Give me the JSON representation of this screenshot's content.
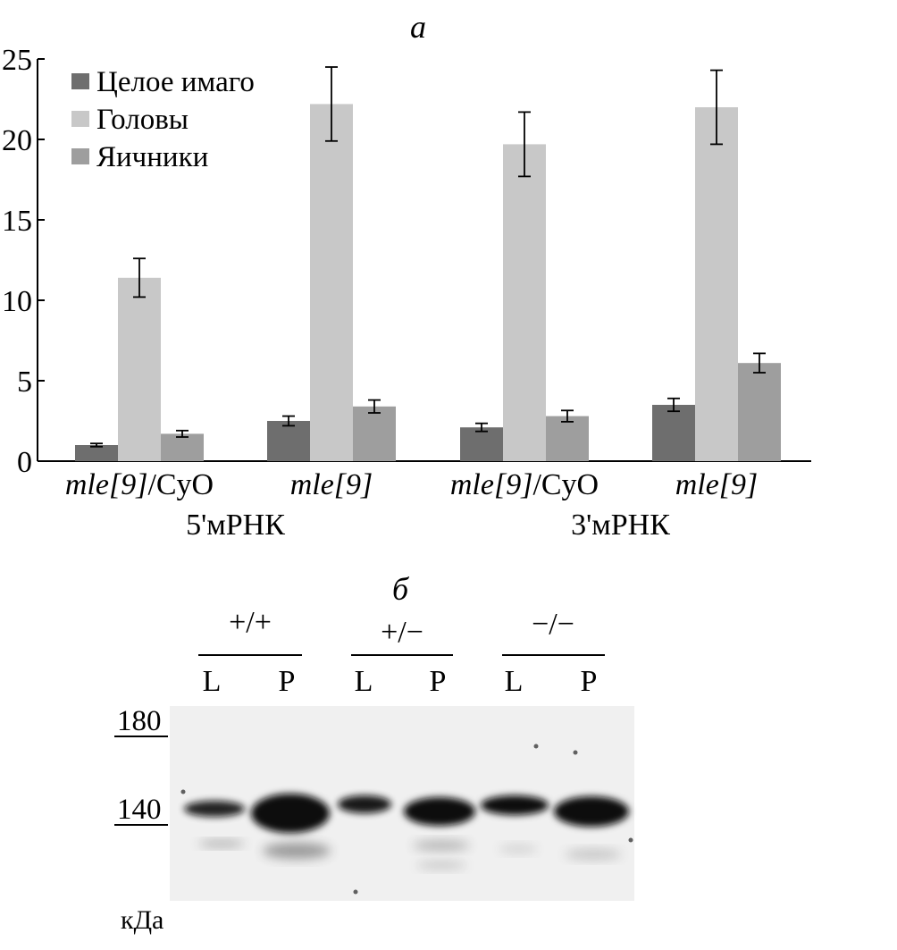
{
  "panel_a": {
    "label": "а",
    "chart_data": {
      "type": "bar",
      "ylim": [
        0,
        25
      ],
      "yticks": [
        0,
        5,
        10,
        15,
        20,
        25
      ],
      "legend_position": "top-left",
      "grid": false,
      "categories": [
        {
          "italic": "mle[9]",
          "roman": "/CyO"
        },
        {
          "italic": "mle[9]",
          "roman": ""
        },
        {
          "italic": "mle[9]",
          "roman": "/CyO"
        },
        {
          "italic": "mle[9]",
          "roman": ""
        }
      ],
      "groups": [
        {
          "label": "5'мРНК",
          "categories": [
            0,
            1
          ]
        },
        {
          "label": "3'мРНК",
          "categories": [
            2,
            3
          ]
        }
      ],
      "series": [
        {
          "name": "Целое имаго",
          "color": "#6e6e6e",
          "values": [
            1.0,
            2.5,
            2.1,
            3.5
          ],
          "errors": [
            0.1,
            0.3,
            0.25,
            0.4
          ]
        },
        {
          "name": "Головы",
          "color": "#c8c8c8",
          "values": [
            11.4,
            22.2,
            19.7,
            22.0
          ],
          "errors": [
            1.2,
            2.3,
            2.0,
            2.3
          ]
        },
        {
          "name": "Яичники",
          "color": "#9e9e9e",
          "values": [
            1.7,
            3.4,
            2.8,
            6.1
          ],
          "errors": [
            0.2,
            0.4,
            0.35,
            0.6
          ]
        }
      ]
    }
  },
  "panel_b": {
    "label": "б",
    "genotypes": [
      "+/+",
      "+/−",
      "−/−"
    ],
    "lanes": [
      "L",
      "P",
      "L",
      "P",
      "L",
      "P"
    ],
    "markers": [
      "180",
      "140"
    ],
    "unit": "кДа"
  }
}
